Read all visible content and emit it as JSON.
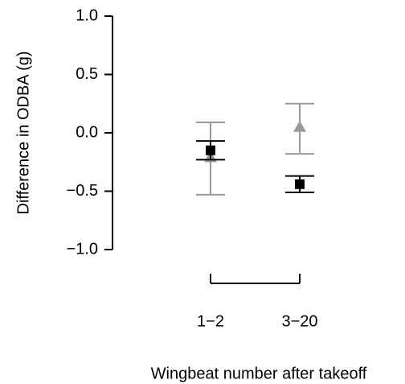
{
  "chart_data": {
    "type": "point",
    "y_label": "Difference in ODBA (g)",
    "x_label": "Wingbeat number after takeoff",
    "categories": [
      "1−2",
      "3−20"
    ],
    "ylim": [
      -1.0,
      1.0
    ],
    "yticks": [
      {
        "value": 1.0,
        "label": "1.0"
      },
      {
        "value": 0.5,
        "label": "0.5"
      },
      {
        "value": 0.0,
        "label": "0.0"
      },
      {
        "value": -0.5,
        "label": "−0.5"
      },
      {
        "value": -1.0,
        "label": "−1.0"
      }
    ],
    "series": [
      {
        "color": "#999999",
        "marker": "triangle",
        "values": [
          -0.21,
          0.05
        ],
        "lower": [
          -0.53,
          -0.18
        ],
        "upper": [
          0.09,
          0.25
        ]
      },
      {
        "color": "#000000",
        "marker": "square",
        "values": [
          -0.15,
          -0.44
        ],
        "lower": [
          -0.23,
          -0.51
        ],
        "upper": [
          -0.07,
          -0.37
        ]
      }
    ]
  }
}
